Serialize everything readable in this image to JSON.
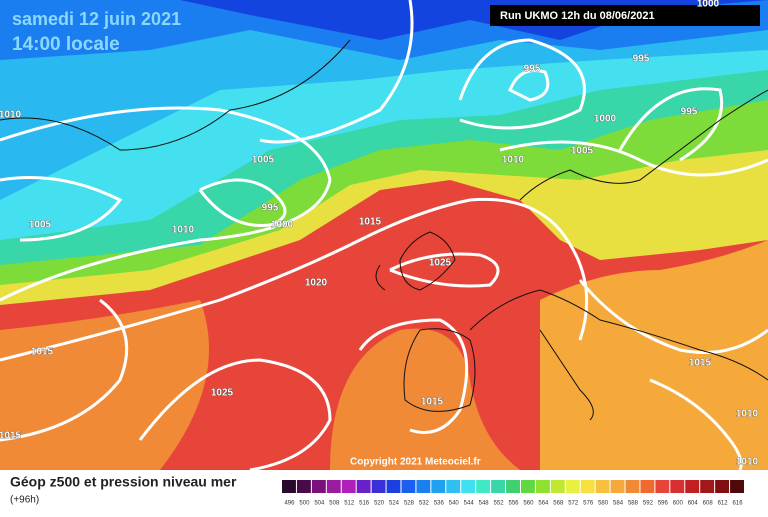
{
  "header": {
    "date": "samedi 12 juin 2021",
    "time": "14:00 locale",
    "run": "Run UKMO 12h du 08/06/2021"
  },
  "isobar_labels": [
    "1010",
    "1005",
    "1010",
    "1005",
    "995",
    "1000",
    "1015",
    "1025",
    "1020",
    "1015",
    "1025",
    "1015",
    "1015",
    "995",
    "995",
    "1000",
    "995",
    "1010",
    "1005",
    "1015",
    "1010",
    "1010",
    "1000"
  ],
  "copyright": "Copyright 2021 Meteociel.fr",
  "footer": {
    "caption": "Géop z500 et pression niveau mer",
    "subcaption": "(+96h)"
  },
  "color_scale": {
    "labels": [
      "496",
      "500",
      "504",
      "508",
      "512",
      "516",
      "520",
      "524",
      "528",
      "532",
      "536",
      "540",
      "544",
      "548",
      "552",
      "556",
      "560",
      "564",
      "568",
      "572",
      "576",
      "580",
      "584",
      "588",
      "592",
      "596",
      "600",
      "604",
      "608",
      "612",
      "616"
    ],
    "colors": [
      "#2a0a2a",
      "#4a0a4a",
      "#7a107a",
      "#9a1aa0",
      "#b020b8",
      "#6a20c8",
      "#3a30d8",
      "#1a40e0",
      "#1a60f0",
      "#1a80f0",
      "#20a0f0",
      "#30c0f0",
      "#40e0f0",
      "#40e8c8",
      "#38d6a8",
      "#40d070",
      "#60d840",
      "#90e030",
      "#c0e830",
      "#e8f040",
      "#f8e040",
      "#f8c040",
      "#f5a93a",
      "#f08a36",
      "#f06a30",
      "#e8453a",
      "#d83030",
      "#c02020",
      "#a01818",
      "#801010",
      "#500808"
    ]
  }
}
